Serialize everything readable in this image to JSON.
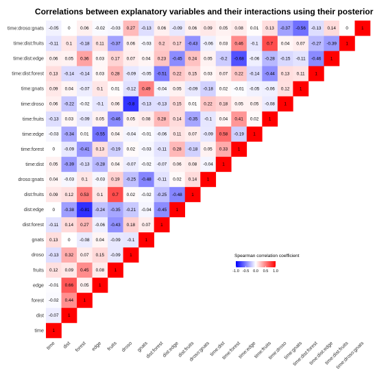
{
  "chart_data": {
    "type": "heatmap",
    "title": "Correlations between explanatory variables and their interactions using their posterior values",
    "variables": [
      "time",
      "dist",
      "forest",
      "edge",
      "fruits",
      "droso",
      "gnats",
      "dist:forest",
      "dist:edge",
      "dist:fruits",
      "droso:gnats",
      "time:dist",
      "time:forest",
      "time:edge",
      "time:fruits",
      "time:droso",
      "time:gnats",
      "time:dist:forest",
      "time:dist:edge",
      "time:dist:fruits",
      "time:droso:gnats"
    ],
    "rows": [
      [
        1
      ],
      [
        -0.07,
        1
      ],
      [
        -0.02,
        0.44,
        1
      ],
      [
        -0.01,
        0.66,
        0.05,
        1
      ],
      [
        0.12,
        0.09,
        0.45,
        0.08,
        1
      ],
      [
        -0.13,
        0.32,
        0.07,
        0.15,
        -0.09,
        1
      ],
      [
        0.13,
        0,
        -0.08,
        0.04,
        -0.09,
        -0.1,
        1
      ],
      [
        -0.11,
        0.14,
        0.27,
        -0.06,
        -0.43,
        0.18,
        0.07,
        1
      ],
      [
        0,
        -0.38,
        -0.81,
        -0.24,
        -0.35,
        -0.21,
        -0.04,
        -0.45,
        1
      ],
      [
        0.09,
        0.12,
        0.53,
        0.1,
        0.7,
        0.02,
        -0.02,
        -0.25,
        -0.48,
        1
      ],
      [
        0.04,
        -0.03,
        0.1,
        -0.03,
        0.19,
        -0.25,
        -0.48,
        -0.11,
        0.02,
        0.14,
        1
      ],
      [
        0.05,
        -0.39,
        -0.13,
        -0.28,
        0.04,
        -0.07,
        -0.02,
        -0.07,
        0.06,
        0.08,
        -0.04,
        1
      ],
      [
        0,
        -0.09,
        -0.41,
        0.13,
        -0.19,
        0.02,
        -0.03,
        -0.11,
        0.28,
        -0.18,
        0.05,
        0.33,
        1
      ],
      [
        -0.03,
        -0.34,
        0.01,
        -0.55,
        0.04,
        -0.04,
        -0.01,
        -0.06,
        0.11,
        0.07,
        -0.09,
        0.58,
        -0.19,
        1
      ],
      [
        -0.13,
        0.03,
        -0.09,
        0.05,
        -0.46,
        0.05,
        0.08,
        0.28,
        0.14,
        -0.35,
        -0.1,
        0.04,
        0.41,
        0.02,
        1
      ],
      [
        0.06,
        -0.22,
        -0.02,
        -0.1,
        0.06,
        -0.8,
        -0.13,
        -0.13,
        0.15,
        0.01,
        0.22,
        0.18,
        0.05,
        0.05,
        -0.08,
        1
      ],
      [
        0.09,
        0.04,
        -0.07,
        0.1,
        0.01,
        -0.12,
        0.49,
        -0.04,
        0.05,
        -0.09,
        -0.18,
        0.02,
        -0.01,
        -0.05,
        -0.06,
        0.12,
        1
      ],
      [
        0.13,
        -0.14,
        -0.14,
        0.03,
        0.28,
        -0.09,
        -0.05,
        -0.51,
        0.22,
        0.15,
        0.03,
        0.07,
        0.22,
        -0.14,
        -0.44,
        0.13,
        0.11,
        1
      ],
      [
        0.06,
        0.05,
        0.36,
        0.03,
        0.17,
        0.07,
        0.04,
        0.23,
        -0.45,
        0.24,
        0.05,
        -0.2,
        -0.68,
        -0.06,
        -0.28,
        -0.15,
        -0.11,
        -0.46,
        1
      ],
      [
        -0.11,
        0.1,
        -0.18,
        0.11,
        -0.37,
        0.06,
        -0.03,
        0.2,
        0.17,
        -0.43,
        -0.06,
        0.03,
        0.46,
        -0.1,
        0.7,
        0.04,
        0.07,
        -0.27,
        -0.39,
        1
      ],
      [
        -0.05,
        0,
        0.06,
        -0.02,
        -0.03,
        0.27,
        -0.13,
        0.06,
        -0.09,
        0.06,
        0.09,
        0.05,
        0.08,
        0.01,
        0.13,
        -0.37,
        -0.56,
        -0.13,
        0.14,
        0,
        1
      ]
    ],
    "legend": {
      "title": "Spearman correlation coefficient",
      "ticks": [
        "-1.0",
        "-0.5",
        "0.0",
        "0.5",
        "1.0"
      ],
      "low_color": "#0000ff",
      "mid_color": "#ffffff",
      "high_color": "#ff0000"
    }
  }
}
